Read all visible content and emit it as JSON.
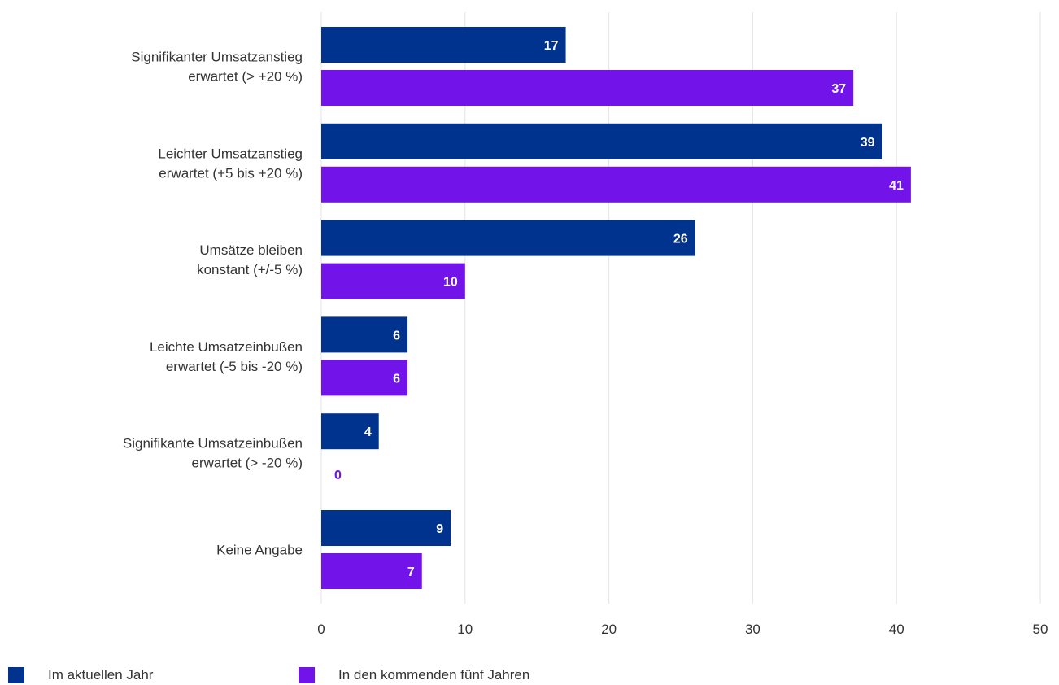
{
  "chart_data": {
    "type": "bar",
    "orientation": "horizontal",
    "categories": [
      [
        "Signifikanter Umsatzanstieg",
        "erwartet (> +20 %)"
      ],
      [
        "Leichter Umsatzanstieg",
        "erwartet (+5 bis +20 %)"
      ],
      [
        "Umsätze bleiben",
        "konstant (+/-5 %)"
      ],
      [
        "Leichte Umsatzeinbußen",
        "erwartet (-5 bis -20 %)"
      ],
      [
        "Signifikante Umsatzeinbußen",
        "erwartet (> -20 %)"
      ],
      [
        "Keine Angabe"
      ]
    ],
    "series": [
      {
        "name": "Im aktuellen Jahr",
        "values": [
          17,
          39,
          26,
          6,
          4,
          9
        ],
        "color": "#00338d"
      },
      {
        "name": "In den kommenden fünf Jahren",
        "values": [
          37,
          41,
          10,
          6,
          0,
          7
        ],
        "color": "#7213ea"
      }
    ],
    "x_ticks": [
      0,
      10,
      20,
      30,
      40,
      50
    ],
    "xlim": [
      0,
      50
    ],
    "grid": true,
    "legend_position": "bottom-left",
    "data_labels": true
  }
}
